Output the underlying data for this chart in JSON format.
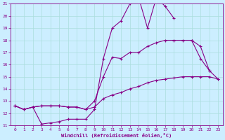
{
  "xlabel": "Windchill (Refroidissement éolien,°C)",
  "xlim": [
    -0.5,
    23.5
  ],
  "ylim": [
    11,
    21
  ],
  "yticks": [
    11,
    12,
    13,
    14,
    15,
    16,
    17,
    18,
    19,
    20,
    21
  ],
  "xticks": [
    0,
    1,
    2,
    3,
    4,
    5,
    6,
    7,
    8,
    9,
    10,
    11,
    12,
    13,
    14,
    15,
    16,
    17,
    18,
    19,
    20,
    21,
    22,
    23
  ],
  "bg_color": "#cceeff",
  "line_color": "#880088",
  "grid_color": "#aadddd",
  "markersize": 2.5,
  "linewidth": 0.8,
  "series": [
    {
      "x": [
        0,
        1,
        2,
        3,
        4,
        5,
        6,
        7,
        8,
        9,
        10,
        11,
        12,
        13,
        14,
        15,
        16,
        17,
        18,
        19,
        20,
        21,
        22,
        23
      ],
      "y": [
        12.6,
        12.3,
        12.5,
        11.1,
        11.2,
        11.3,
        11.5,
        11.5,
        11.5,
        12.3,
        16.5,
        19.0,
        19.6,
        21.0,
        21.5,
        19.0,
        21.5,
        20.8,
        19.8,
        null,
        18.0,
        16.5,
        15.5,
        null
      ]
    },
    {
      "x": [
        0,
        1,
        2,
        3,
        4,
        5,
        6,
        7,
        8,
        9,
        10,
        11,
        12,
        13,
        14,
        15,
        16,
        17,
        18,
        19,
        20,
        21,
        22,
        23
      ],
      "y": [
        12.6,
        12.3,
        12.5,
        12.6,
        12.6,
        12.6,
        12.5,
        12.5,
        12.3,
        13.0,
        15.0,
        16.6,
        16.5,
        17.0,
        17.0,
        17.5,
        17.8,
        18.0,
        18.0,
        18.0,
        18.0,
        17.5,
        15.5,
        14.8
      ]
    },
    {
      "x": [
        0,
        1,
        2,
        3,
        4,
        5,
        6,
        7,
        8,
        9,
        10,
        11,
        12,
        13,
        14,
        15,
        16,
        17,
        18,
        19,
        20,
        21,
        22,
        23
      ],
      "y": [
        12.6,
        12.3,
        12.5,
        12.6,
        12.6,
        12.6,
        12.5,
        12.5,
        12.3,
        12.5,
        13.2,
        13.5,
        13.7,
        14.0,
        14.2,
        14.5,
        14.7,
        14.8,
        14.9,
        15.0,
        15.0,
        15.0,
        15.0,
        14.8
      ]
    }
  ]
}
